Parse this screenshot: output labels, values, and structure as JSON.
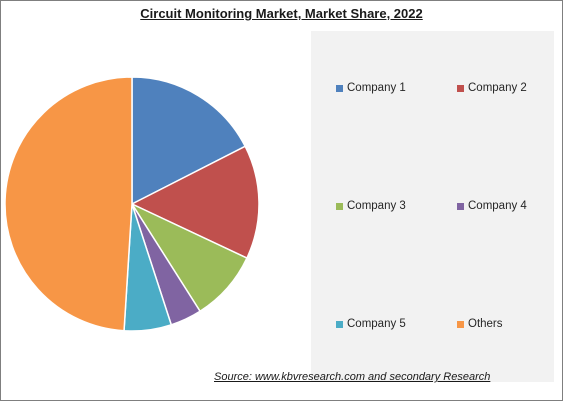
{
  "chart_data": {
    "type": "pie",
    "title": "Circuit Monitoring Market, Market Share, 2022",
    "slices": [
      {
        "label": "Company 1",
        "value": 17.5,
        "color": "#4f81bd"
      },
      {
        "label": "Company 2",
        "value": 14.5,
        "color": "#c0504d"
      },
      {
        "label": "Company 3",
        "value": 9,
        "color": "#9bbb59"
      },
      {
        "label": "Company 4",
        "value": 4,
        "color": "#8064a2"
      },
      {
        "label": "Company 5",
        "value": 6,
        "color": "#4bacc6"
      },
      {
        "label": "Others",
        "value": 49,
        "color": "#f79646"
      }
    ],
    "start_angle_deg": 0,
    "direction": "clockwise",
    "legend_position": "right"
  },
  "legend": {
    "items": [
      {
        "label": "Company 1",
        "color": "#4f81bd"
      },
      {
        "label": "Company 2",
        "color": "#c0504d"
      },
      {
        "label": "Company 3",
        "color": "#9bbb59"
      },
      {
        "label": "Company 4",
        "color": "#8064a2"
      },
      {
        "label": "Company 5",
        "color": "#4bacc6"
      },
      {
        "label": "Others",
        "color": "#f79646"
      }
    ]
  },
  "footer": {
    "source": "Source:  www.kbvresearch.com  and secondary Research"
  }
}
